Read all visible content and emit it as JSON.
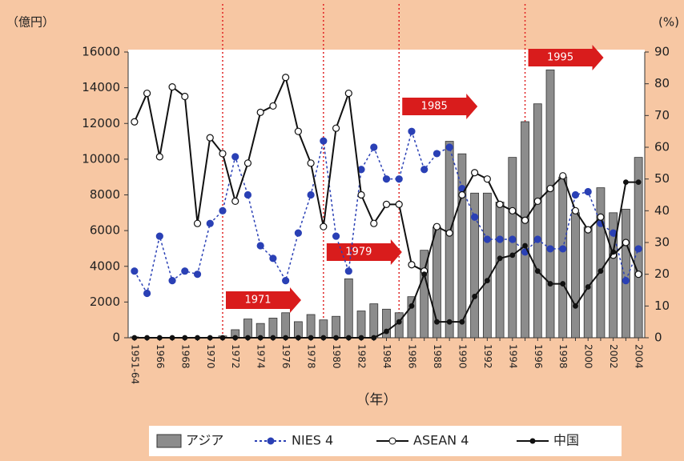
{
  "chart_data": {
    "type": "bar-line",
    "y_label": "（億円）",
    "y2_label": "(%)",
    "x_label": "（年）",
    "categories": [
      "1951-64",
      null,
      "1966",
      null,
      "1968",
      null,
      "1970",
      null,
      "1972",
      null,
      "1974",
      null,
      "1976",
      null,
      "1978",
      null,
      "1980",
      null,
      "1982",
      null,
      "1984",
      null,
      "1986",
      null,
      "1988",
      null,
      "1990",
      null,
      "1992",
      null,
      "1994",
      null,
      "1996",
      null,
      "1998",
      null,
      "2000",
      null,
      "2002",
      null,
      "2004"
    ],
    "ylim": [
      0,
      16000
    ],
    "yticks": [
      0,
      2000,
      4000,
      6000,
      8000,
      10000,
      12000,
      14000,
      16000
    ],
    "y2lim": [
      0,
      90
    ],
    "y2ticks": [
      0,
      10,
      20,
      30,
      40,
      50,
      60,
      70,
      80,
      90
    ],
    "series": [
      {
        "name": "アジア",
        "kind": "bar",
        "color": "#8c8c8c",
        "values": [
          50,
          0,
          0,
          0,
          0,
          0,
          30,
          100,
          450,
          1050,
          800,
          1100,
          1400,
          900,
          1300,
          1000,
          1200,
          3300,
          1500,
          1900,
          1600,
          1400,
          2300,
          4900,
          6200,
          11000,
          10300,
          8100,
          8100,
          7600,
          10100,
          12100,
          13100,
          15000,
          9000,
          7000,
          6200,
          8400,
          7000,
          7200,
          10100
        ]
      },
      {
        "name": "NIES 4",
        "kind": "line",
        "axis": "y2",
        "color": "#2a40b5",
        "values": [
          21,
          14,
          32,
          18,
          21,
          20,
          36,
          40,
          57,
          45,
          29,
          25,
          18,
          33,
          45,
          62,
          32,
          21,
          53,
          60,
          50,
          50,
          65,
          53,
          58,
          60,
          47,
          38,
          31,
          31,
          31,
          27,
          31,
          28,
          28,
          45,
          46,
          36,
          33,
          18,
          28
        ]
      },
      {
        "name": "ASEAN 4",
        "kind": "line",
        "axis": "y2",
        "color": "#111111",
        "values": [
          68,
          77,
          57,
          79,
          76,
          36,
          63,
          58,
          43,
          55,
          71,
          73,
          82,
          65,
          55,
          35,
          66,
          77,
          45,
          36,
          42,
          42,
          23,
          21,
          35,
          33,
          45,
          52,
          50,
          42,
          40,
          37,
          43,
          47,
          51,
          40,
          34,
          38,
          26,
          30,
          20
        ]
      },
      {
        "name": "中国",
        "kind": "line",
        "axis": "y2",
        "color": "#111111",
        "values": [
          0,
          0,
          0,
          0,
          0,
          0,
          0,
          0,
          0,
          0,
          0,
          0,
          0,
          0,
          0,
          0,
          0,
          0,
          0,
          0,
          2,
          5,
          10,
          20,
          5,
          5,
          5,
          13,
          18,
          25,
          26,
          29,
          21,
          17,
          17,
          10,
          16,
          21,
          27,
          49,
          49
        ]
      }
    ],
    "annotations": [
      "1971",
      "1979",
      "1985",
      "1995"
    ]
  }
}
